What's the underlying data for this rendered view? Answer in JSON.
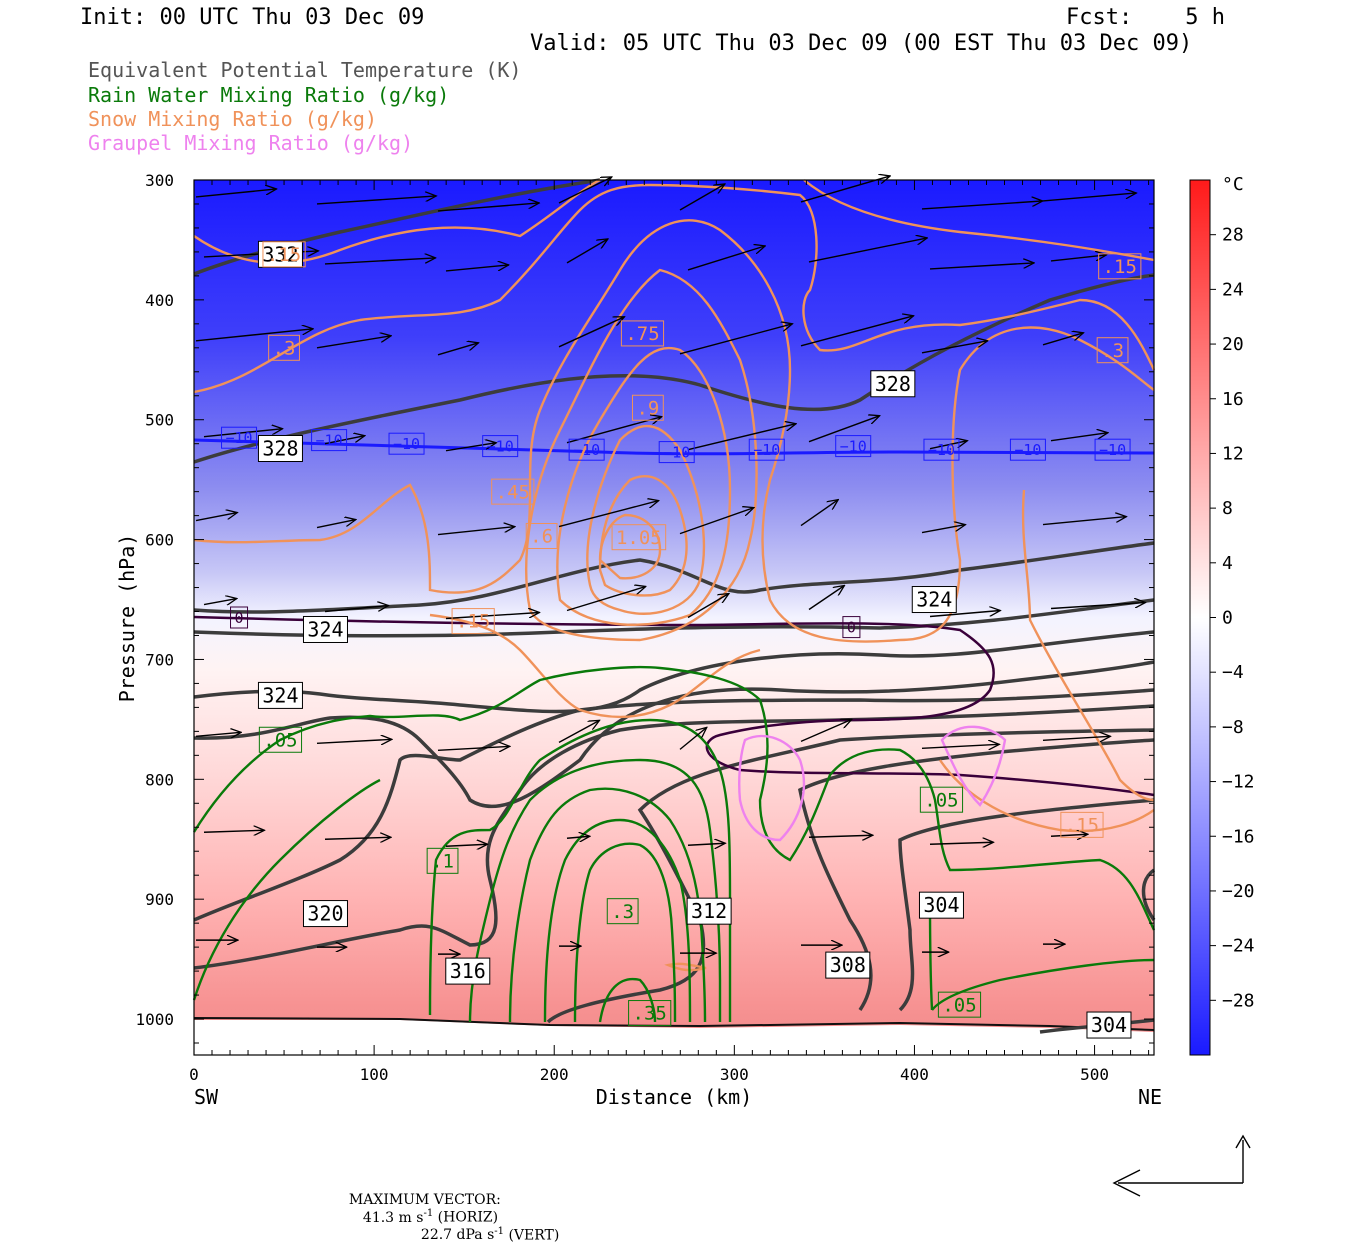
{
  "header": {
    "init": "Init: 00 UTC Thu 03 Dec 09",
    "fcst": "Fcst:    5 h",
    "valid": "Valid: 05 UTC Thu 03 Dec 09 (00 EST Thu 03 Dec 09)"
  },
  "legend": [
    {
      "text": "Equivalent Potential Temperature (K)",
      "color": "#555555"
    },
    {
      "text": "Rain Water Mixing Ratio (g/kg)",
      "color": "#0a7a0a"
    },
    {
      "text": "Snow Mixing Ratio (g/kg)",
      "color": "#f0925a"
    },
    {
      "text": "Graupel Mixing Ratio (g/kg)",
      "color": "#ee82ee"
    }
  ],
  "footer": {
    "max_vector_label": "MAXIMUM VECTOR:",
    "horiz_value": "41.3 m s",
    "horiz_suffix": " (HORIZ)",
    "vert_value": "22.7 dPa s",
    "vert_suffix": " (VERT)",
    "exponent": "-1"
  },
  "chart_data": {
    "type": "heatmap",
    "xlabel": "Distance (km)",
    "ylabel": "Pressure (hPa)",
    "xlim": [
      0,
      533
    ],
    "ylim": [
      1030,
      300
    ],
    "x_ticks": [
      0,
      100,
      200,
      300,
      400,
      500
    ],
    "y_ticks": [
      300,
      400,
      500,
      600,
      700,
      800,
      900,
      1000
    ],
    "x_left_label": "SW",
    "x_right_label": "NE",
    "colorbar": {
      "unit": "°C",
      "min": -32,
      "max": 32,
      "tick_labels": [
        "28",
        "24",
        "20",
        "16",
        "12",
        "8",
        "4",
        "0",
        "−4",
        "−8",
        "−12",
        "−16",
        "−20",
        "−24",
        "−28"
      ],
      "tick_values": [
        28,
        24,
        20,
        16,
        12,
        8,
        4,
        0,
        -4,
        -8,
        -12,
        -16,
        -20,
        -24,
        -28
      ]
    },
    "temperature_isotherm_labels": [
      {
        "text": "−10",
        "x": 25,
        "p": 515,
        "color": "#1a1aff"
      },
      {
        "text": "−10",
        "x": 75,
        "p": 517,
        "color": "#1a1aff"
      },
      {
        "text": "−10",
        "x": 118,
        "p": 520,
        "color": "#1a1aff"
      },
      {
        "text": "−10",
        "x": 170,
        "p": 522,
        "color": "#1a1aff"
      },
      {
        "text": "−10",
        "x": 218,
        "p": 525,
        "color": "#1a1aff"
      },
      {
        "text": "−10",
        "x": 268,
        "p": 527,
        "color": "#1a1aff"
      },
      {
        "text": "−10",
        "x": 318,
        "p": 525,
        "color": "#1a1aff"
      },
      {
        "text": "−10",
        "x": 366,
        "p": 522,
        "color": "#1a1aff"
      },
      {
        "text": "−10",
        "x": 415,
        "p": 525,
        "color": "#1a1aff"
      },
      {
        "text": "−10",
        "x": 463,
        "p": 525,
        "color": "#1a1aff"
      },
      {
        "text": "−10",
        "x": 510,
        "p": 525,
        "color": "#1a1aff"
      },
      {
        "text": "0",
        "x": 25,
        "p": 665,
        "color": "#3a003a"
      },
      {
        "text": "0",
        "x": 365,
        "p": 673,
        "color": "#3a003a"
      }
    ],
    "theta_e_labels": [
      {
        "text": "332",
        "x": 48,
        "p": 362
      },
      {
        "text": "328",
        "x": 388,
        "p": 470
      },
      {
        "text": "328",
        "x": 48,
        "p": 524
      },
      {
        "text": "324",
        "x": 411,
        "p": 650
      },
      {
        "text": "324",
        "x": 73,
        "p": 675
      },
      {
        "text": "324",
        "x": 48,
        "p": 730
      },
      {
        "text": "320",
        "x": 73,
        "p": 912
      },
      {
        "text": "316",
        "x": 152,
        "p": 960
      },
      {
        "text": "312",
        "x": 286,
        "p": 910
      },
      {
        "text": "308",
        "x": 363,
        "p": 955
      },
      {
        "text": "304",
        "x": 415,
        "p": 905
      },
      {
        "text": "304",
        "x": 508,
        "p": 1005
      }
    ],
    "snow_labels": [
      {
        "text": ".15",
        "x": 50,
        "p": 362
      },
      {
        "text": ".15",
        "x": 514,
        "p": 372
      },
      {
        "text": ".3",
        "x": 50,
        "p": 440
      },
      {
        "text": ".3",
        "x": 510,
        "p": 442
      },
      {
        "text": ".75",
        "x": 249,
        "p": 428
      },
      {
        "text": ".9",
        "x": 252,
        "p": 490
      },
      {
        "text": ".45",
        "x": 177,
        "p": 560
      },
      {
        "text": ".6",
        "x": 193,
        "p": 597
      },
      {
        "text": "1.05",
        "x": 247,
        "p": 598
      },
      {
        "text": ".15",
        "x": 155,
        "p": 668
      },
      {
        "text": ".15",
        "x": 493,
        "p": 838
      }
    ],
    "rain_labels": [
      {
        "text": ".05",
        "x": 48,
        "p": 767
      },
      {
        "text": ".05",
        "x": 415,
        "p": 817
      },
      {
        "text": ".05",
        "x": 425,
        "p": 988
      },
      {
        "text": ".1",
        "x": 138,
        "p": 868
      },
      {
        "text": ".3",
        "x": 238,
        "p": 910
      },
      {
        "text": ".35",
        "x": 253,
        "p": 995
      }
    ]
  }
}
